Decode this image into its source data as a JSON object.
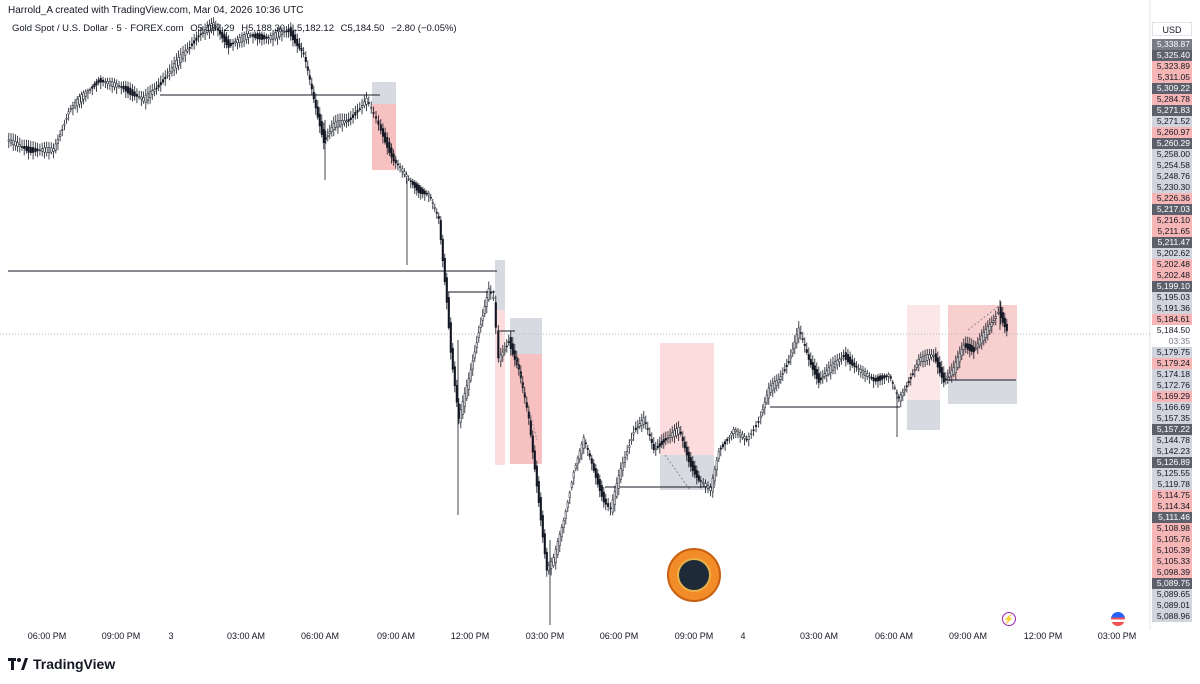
{
  "header": {
    "text": "Harrold_A created with TradingView.com, Mar 04, 2026 10:36 UTC"
  },
  "symbol": {
    "name": "Gold Spot / U.S. Dollar · 5 · FOREX.com",
    "open": "O5,187.29",
    "high": "H5,188.30",
    "low": "L5,182.12",
    "close": "C5,184.50",
    "change": "−2.80 (−0.05%)"
  },
  "axis": {
    "currency": "USD",
    "price_labels": [
      {
        "text": "5,338.87",
        "style": "pl-gray"
      },
      {
        "text": "5,325.40",
        "style": "pl-dark"
      },
      {
        "text": "5,323.89",
        "style": "pl-pink"
      },
      {
        "text": "5,311.05",
        "style": "pl-pink"
      },
      {
        "text": "5,309.22",
        "style": "pl-dark"
      },
      {
        "text": "5,284.78",
        "style": "pl-pink"
      },
      {
        "text": "5,271.83",
        "style": "pl-dark"
      },
      {
        "text": "5,271.52",
        "style": "pl-lightgray"
      },
      {
        "text": "5,260.97",
        "style": "pl-pink"
      },
      {
        "text": "5,260.29",
        "style": "pl-dark"
      },
      {
        "text": "5,258.00",
        "style": "pl-lightgray"
      },
      {
        "text": "5,254.58",
        "style": "pl-lightgray"
      },
      {
        "text": "5,248.76",
        "style": "pl-lightgray"
      },
      {
        "text": "5,230.30",
        "style": "pl-lightgray"
      },
      {
        "text": "5,226.36",
        "style": "pl-pink"
      },
      {
        "text": "5,217.03",
        "style": "pl-dark"
      },
      {
        "text": "5,216.10",
        "style": "pl-pink"
      },
      {
        "text": "5,211.65",
        "style": "pl-pink"
      },
      {
        "text": "5,211.47",
        "style": "pl-dark"
      },
      {
        "text": "5,202.62",
        "style": "pl-lightgray"
      },
      {
        "text": "5,202.48",
        "style": "pl-pink"
      },
      {
        "text": "5,202.48",
        "style": "pl-pink"
      },
      {
        "text": "5,199.10",
        "style": "pl-dark"
      },
      {
        "text": "5,195.03",
        "style": "pl-lightgray"
      },
      {
        "text": "5,191.36",
        "style": "pl-lightgray"
      },
      {
        "text": "5,184.61",
        "style": "pl-pink"
      },
      {
        "text": "5,184.50",
        "style": "pl-current"
      },
      {
        "text": "03:35",
        "style": "pl-timer"
      },
      {
        "text": "5,179.75",
        "style": "pl-lightgray"
      },
      {
        "text": "5,179.24",
        "style": "pl-pink"
      },
      {
        "text": "5,174.18",
        "style": "pl-lightgray"
      },
      {
        "text": "5,172.76",
        "style": "pl-lightgray"
      },
      {
        "text": "5,169.29",
        "style": "pl-pink"
      },
      {
        "text": "5,166.69",
        "style": "pl-lightgray"
      },
      {
        "text": "5,157.35",
        "style": "pl-lightgray"
      },
      {
        "text": "5,157.22",
        "style": "pl-dark"
      },
      {
        "text": "5,144.78",
        "style": "pl-lightgray"
      },
      {
        "text": "5,142.23",
        "style": "pl-lightgray"
      },
      {
        "text": "5,126.89",
        "style": "pl-dark"
      },
      {
        "text": "5,125.55",
        "style": "pl-lightgray"
      },
      {
        "text": "5,119.78",
        "style": "pl-lightgray"
      },
      {
        "text": "5,114.75",
        "style": "pl-pink"
      },
      {
        "text": "5,114.34",
        "style": "pl-pink"
      },
      {
        "text": "5,111.46",
        "style": "pl-dark"
      },
      {
        "text": "5,108.98",
        "style": "pl-pink"
      },
      {
        "text": "5,105.76",
        "style": "pl-pink"
      },
      {
        "text": "5,105.39",
        "style": "pl-pink"
      },
      {
        "text": "5,105.33",
        "style": "pl-pink"
      },
      {
        "text": "5,098.39",
        "style": "pl-pink"
      },
      {
        "text": "5,089.75",
        "style": "pl-dark"
      },
      {
        "text": "5,089.65",
        "style": "pl-lightgray"
      },
      {
        "text": "5,089.01",
        "style": "pl-lightgray"
      },
      {
        "text": "5,088.96",
        "style": "pl-lightgray"
      }
    ]
  },
  "time_axis": [
    "06:00 PM",
    "09:00 PM",
    "3",
    "03:00 AM",
    "06:00 AM",
    "09:00 AM",
    "12:00 PM",
    "03:00 PM",
    "06:00 PM",
    "09:00 PM",
    "4",
    "03:00 AM",
    "06:00 AM",
    "09:00 AM",
    "12:00 PM",
    "03:00 PM"
  ],
  "footer": {
    "brand": "TradingView"
  },
  "colors": {
    "bull": "#131722",
    "bear": "#131722",
    "supply_zone": "#f7b6b6",
    "neutral_zone": "#d1d4dc",
    "current_line": "#b2b5be"
  }
}
